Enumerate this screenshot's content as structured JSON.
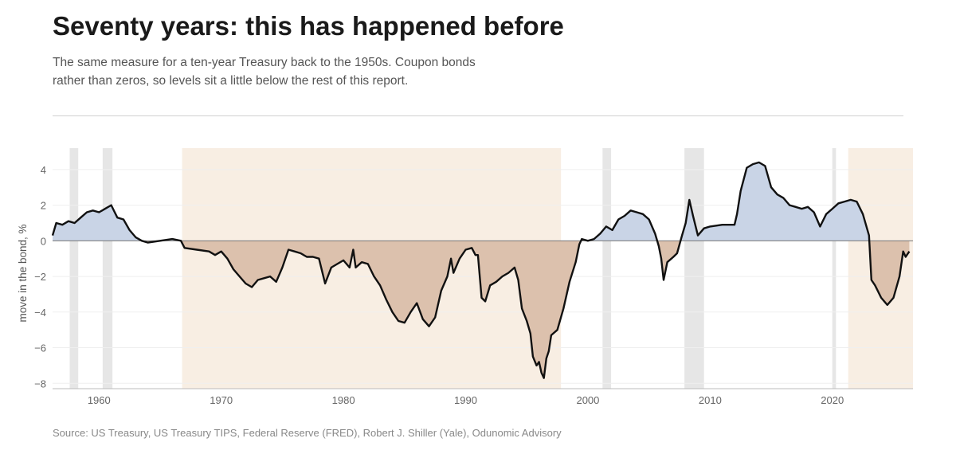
{
  "header": {
    "title": "Seventy years: this has happened before",
    "subtitle": "The same measure for a ten-year Treasury back to the 1950s. Coupon bonds rather than zeros, so levels sit a little below the rest of this report."
  },
  "footer": {
    "source": "Source: US Treasury, US Treasury TIPS, Federal Reserve (FRED), Robert J. Shiller (Yale), Odunomic Advisory"
  },
  "colors": {
    "positive_fill": "#c9d4e6",
    "negative_fill": "#dcc1ad",
    "line": "#111111",
    "recession": "#e6e6e6",
    "regime_highlight": "#f8eee3"
  },
  "chart_data": {
    "type": "area",
    "title": "",
    "xlabel": "",
    "ylabel": "move in the bond, %",
    "xlim": [
      1956.2,
      2026.6
    ],
    "ylim": [
      -8.3,
      5.2
    ],
    "x_ticks": [
      1960,
      1970,
      1980,
      1990,
      2000,
      2010,
      2020
    ],
    "y_ticks": [
      4,
      2,
      0,
      -2,
      -4,
      -6,
      -8
    ],
    "y_tick_labels": [
      "4",
      "2",
      "0",
      "−2",
      "−4",
      "−6",
      "−8"
    ],
    "grid": "horizontal",
    "shaded_periods_recession": [
      [
        1957.6,
        1958.3
      ],
      [
        1960.3,
        1961.1
      ],
      [
        2001.2,
        2001.9
      ],
      [
        2007.9,
        2009.5
      ],
      [
        2020.0,
        2020.3
      ]
    ],
    "shaded_periods_highlight": [
      [
        1966.8,
        1997.8
      ],
      [
        2021.3,
        2026.6
      ]
    ],
    "series": [
      {
        "points": [
          [
            1956.2,
            0.3
          ],
          [
            1956.5,
            1.0
          ],
          [
            1957.0,
            0.9
          ],
          [
            1957.5,
            1.1
          ],
          [
            1958.0,
            1.0
          ],
          [
            1958.5,
            1.3
          ],
          [
            1959.0,
            1.6
          ],
          [
            1959.5,
            1.7
          ],
          [
            1960.0,
            1.6
          ],
          [
            1960.5,
            1.8
          ],
          [
            1961.0,
            2.0
          ],
          [
            1961.5,
            1.3
          ],
          [
            1962.0,
            1.2
          ],
          [
            1962.5,
            0.6
          ],
          [
            1963.0,
            0.2
          ],
          [
            1963.5,
            0.0
          ],
          [
            1964.0,
            -0.1
          ],
          [
            1965.0,
            0.0
          ],
          [
            1966.0,
            0.1
          ],
          [
            1966.7,
            0.0
          ],
          [
            1967.0,
            -0.4
          ],
          [
            1968.0,
            -0.5
          ],
          [
            1969.0,
            -0.6
          ],
          [
            1969.5,
            -0.8
          ],
          [
            1970.0,
            -0.6
          ],
          [
            1970.5,
            -1.0
          ],
          [
            1971.0,
            -1.6
          ],
          [
            1971.5,
            -2.0
          ],
          [
            1972.0,
            -2.4
          ],
          [
            1972.5,
            -2.6
          ],
          [
            1973.0,
            -2.2
          ],
          [
            1973.5,
            -2.1
          ],
          [
            1974.0,
            -2.0
          ],
          [
            1974.5,
            -2.3
          ],
          [
            1975.0,
            -1.5
          ],
          [
            1975.5,
            -0.5
          ],
          [
            1976.0,
            -0.6
          ],
          [
            1976.5,
            -0.7
          ],
          [
            1977.0,
            -0.9
          ],
          [
            1977.5,
            -0.9
          ],
          [
            1978.0,
            -1.0
          ],
          [
            1978.5,
            -2.4
          ],
          [
            1979.0,
            -1.5
          ],
          [
            1979.5,
            -1.3
          ],
          [
            1980.0,
            -1.1
          ],
          [
            1980.5,
            -1.5
          ],
          [
            1980.8,
            -0.5
          ],
          [
            1981.0,
            -1.5
          ],
          [
            1981.5,
            -1.2
          ],
          [
            1982.0,
            -1.3
          ],
          [
            1982.5,
            -2.0
          ],
          [
            1983.0,
            -2.5
          ],
          [
            1983.5,
            -3.3
          ],
          [
            1984.0,
            -4.0
          ],
          [
            1984.5,
            -4.5
          ],
          [
            1985.0,
            -4.6
          ],
          [
            1985.5,
            -4.0
          ],
          [
            1986.0,
            -3.5
          ],
          [
            1986.5,
            -4.4
          ],
          [
            1987.0,
            -4.8
          ],
          [
            1987.5,
            -4.3
          ],
          [
            1988.0,
            -2.8
          ],
          [
            1988.5,
            -2.0
          ],
          [
            1988.8,
            -1.0
          ],
          [
            1989.0,
            -1.8
          ],
          [
            1989.5,
            -1.0
          ],
          [
            1990.0,
            -0.5
          ],
          [
            1990.5,
            -0.4
          ],
          [
            1990.8,
            -0.8
          ],
          [
            1991.0,
            -0.8
          ],
          [
            1991.3,
            -3.2
          ],
          [
            1991.6,
            -3.4
          ],
          [
            1992.0,
            -2.5
          ],
          [
            1992.5,
            -2.3
          ],
          [
            1993.0,
            -2.0
          ],
          [
            1993.5,
            -1.8
          ],
          [
            1994.0,
            -1.5
          ],
          [
            1994.3,
            -2.2
          ],
          [
            1994.6,
            -3.8
          ],
          [
            1995.0,
            -4.5
          ],
          [
            1995.3,
            -5.2
          ],
          [
            1995.5,
            -6.5
          ],
          [
            1995.8,
            -7.0
          ],
          [
            1996.0,
            -6.8
          ],
          [
            1996.2,
            -7.4
          ],
          [
            1996.4,
            -7.7
          ],
          [
            1996.6,
            -6.6
          ],
          [
            1996.8,
            -6.2
          ],
          [
            1997.0,
            -5.3
          ],
          [
            1997.5,
            -5.0
          ],
          [
            1998.0,
            -3.8
          ],
          [
            1998.5,
            -2.3
          ],
          [
            1999.0,
            -1.2
          ],
          [
            1999.3,
            -0.2
          ],
          [
            1999.5,
            0.1
          ],
          [
            2000.0,
            0.0
          ],
          [
            2000.5,
            0.1
          ],
          [
            2001.0,
            0.4
          ],
          [
            2001.5,
            0.8
          ],
          [
            2002.0,
            0.6
          ],
          [
            2002.5,
            1.2
          ],
          [
            2003.0,
            1.4
          ],
          [
            2003.5,
            1.7
          ],
          [
            2004.0,
            1.6
          ],
          [
            2004.5,
            1.5
          ],
          [
            2005.0,
            1.2
          ],
          [
            2005.5,
            0.4
          ],
          [
            2005.8,
            -0.3
          ],
          [
            2006.0,
            -1.0
          ],
          [
            2006.2,
            -2.2
          ],
          [
            2006.5,
            -1.2
          ],
          [
            2007.0,
            -0.9
          ],
          [
            2007.3,
            -0.7
          ],
          [
            2007.7,
            0.3
          ],
          [
            2008.0,
            1.0
          ],
          [
            2008.3,
            2.3
          ],
          [
            2008.6,
            1.4
          ],
          [
            2009.0,
            0.3
          ],
          [
            2009.5,
            0.7
          ],
          [
            2010.0,
            0.8
          ],
          [
            2011.0,
            0.9
          ],
          [
            2012.0,
            0.9
          ],
          [
            2012.2,
            1.5
          ],
          [
            2012.5,
            2.8
          ],
          [
            2013.0,
            4.1
          ],
          [
            2013.5,
            4.3
          ],
          [
            2014.0,
            4.4
          ],
          [
            2014.5,
            4.2
          ],
          [
            2015.0,
            3.0
          ],
          [
            2015.5,
            2.6
          ],
          [
            2016.0,
            2.4
          ],
          [
            2016.5,
            2.0
          ],
          [
            2017.0,
            1.9
          ],
          [
            2017.5,
            1.8
          ],
          [
            2018.0,
            1.9
          ],
          [
            2018.5,
            1.6
          ],
          [
            2019.0,
            0.8
          ],
          [
            2019.5,
            1.5
          ],
          [
            2020.0,
            1.8
          ],
          [
            2020.5,
            2.1
          ],
          [
            2021.0,
            2.2
          ],
          [
            2021.5,
            2.3
          ],
          [
            2022.0,
            2.2
          ],
          [
            2022.5,
            1.5
          ],
          [
            2023.0,
            0.3
          ],
          [
            2023.2,
            -2.2
          ],
          [
            2023.5,
            -2.5
          ],
          [
            2024.0,
            -3.2
          ],
          [
            2024.5,
            -3.6
          ],
          [
            2025.0,
            -3.2
          ],
          [
            2025.5,
            -2.0
          ],
          [
            2025.8,
            -0.6
          ],
          [
            2026.0,
            -0.9
          ],
          [
            2026.3,
            -0.6
          ]
        ]
      }
    ]
  }
}
